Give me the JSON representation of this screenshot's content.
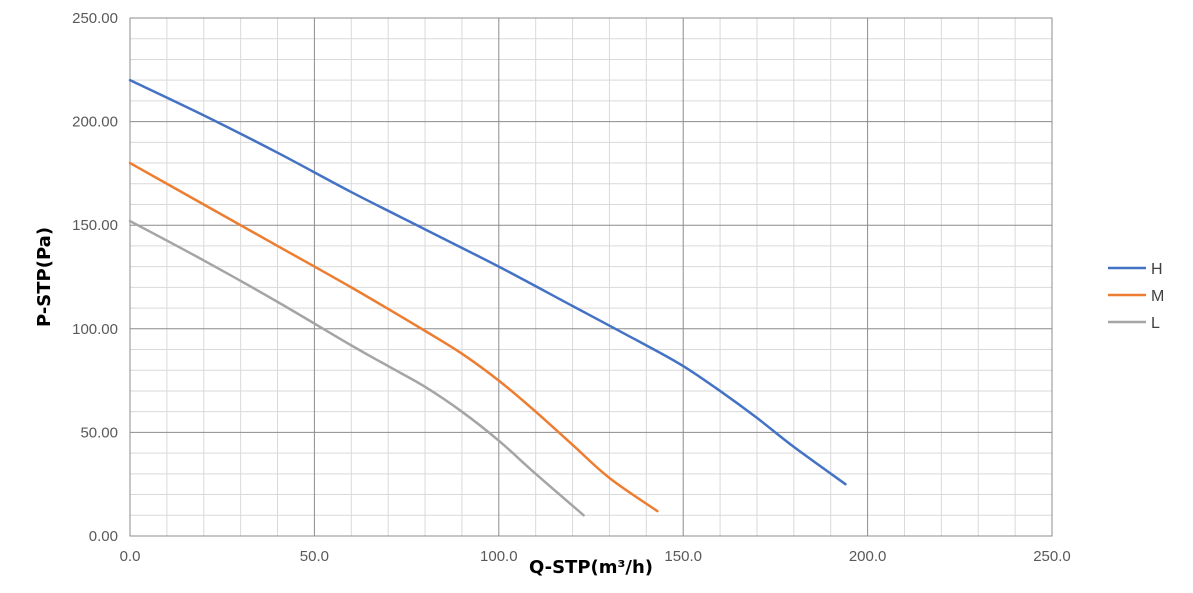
{
  "chart_data": {
    "type": "line",
    "title": "",
    "xlabel": "Q-STP(m³/h)",
    "ylabel": "P-STP(Pa)",
    "xlim": [
      0,
      250
    ],
    "ylim": [
      0,
      250
    ],
    "x_ticks": [
      "0.0",
      "50.0",
      "100.0",
      "150.0",
      "200.0",
      "250.0"
    ],
    "y_ticks": [
      "0.00",
      "50.00",
      "100.00",
      "150.00",
      "200.00",
      "250.00"
    ],
    "grid": true,
    "major_step": 50,
    "minor_step": 10,
    "legend_position": "right",
    "series": [
      {
        "name": "H",
        "color": "#4472C4",
        "x": [
          0,
          20,
          40,
          60,
          80,
          100,
          120,
          140,
          150,
          160,
          170,
          180,
          194
        ],
        "y": [
          220,
          203,
          185,
          166,
          148,
          130,
          111,
          92,
          82,
          70,
          57,
          43,
          25
        ]
      },
      {
        "name": "M",
        "color": "#ED7D31",
        "x": [
          0,
          20,
          40,
          60,
          80,
          90,
          100,
          110,
          120,
          130,
          143
        ],
        "y": [
          180,
          160,
          140,
          120,
          99,
          88,
          75,
          60,
          44,
          28,
          12
        ]
      },
      {
        "name": "L",
        "color": "#A5A5A5",
        "x": [
          0,
          20,
          40,
          60,
          70,
          80,
          90,
          100,
          110,
          123
        ],
        "y": [
          152,
          133,
          113,
          92,
          82,
          72,
          60,
          46,
          30,
          10
        ]
      }
    ]
  }
}
